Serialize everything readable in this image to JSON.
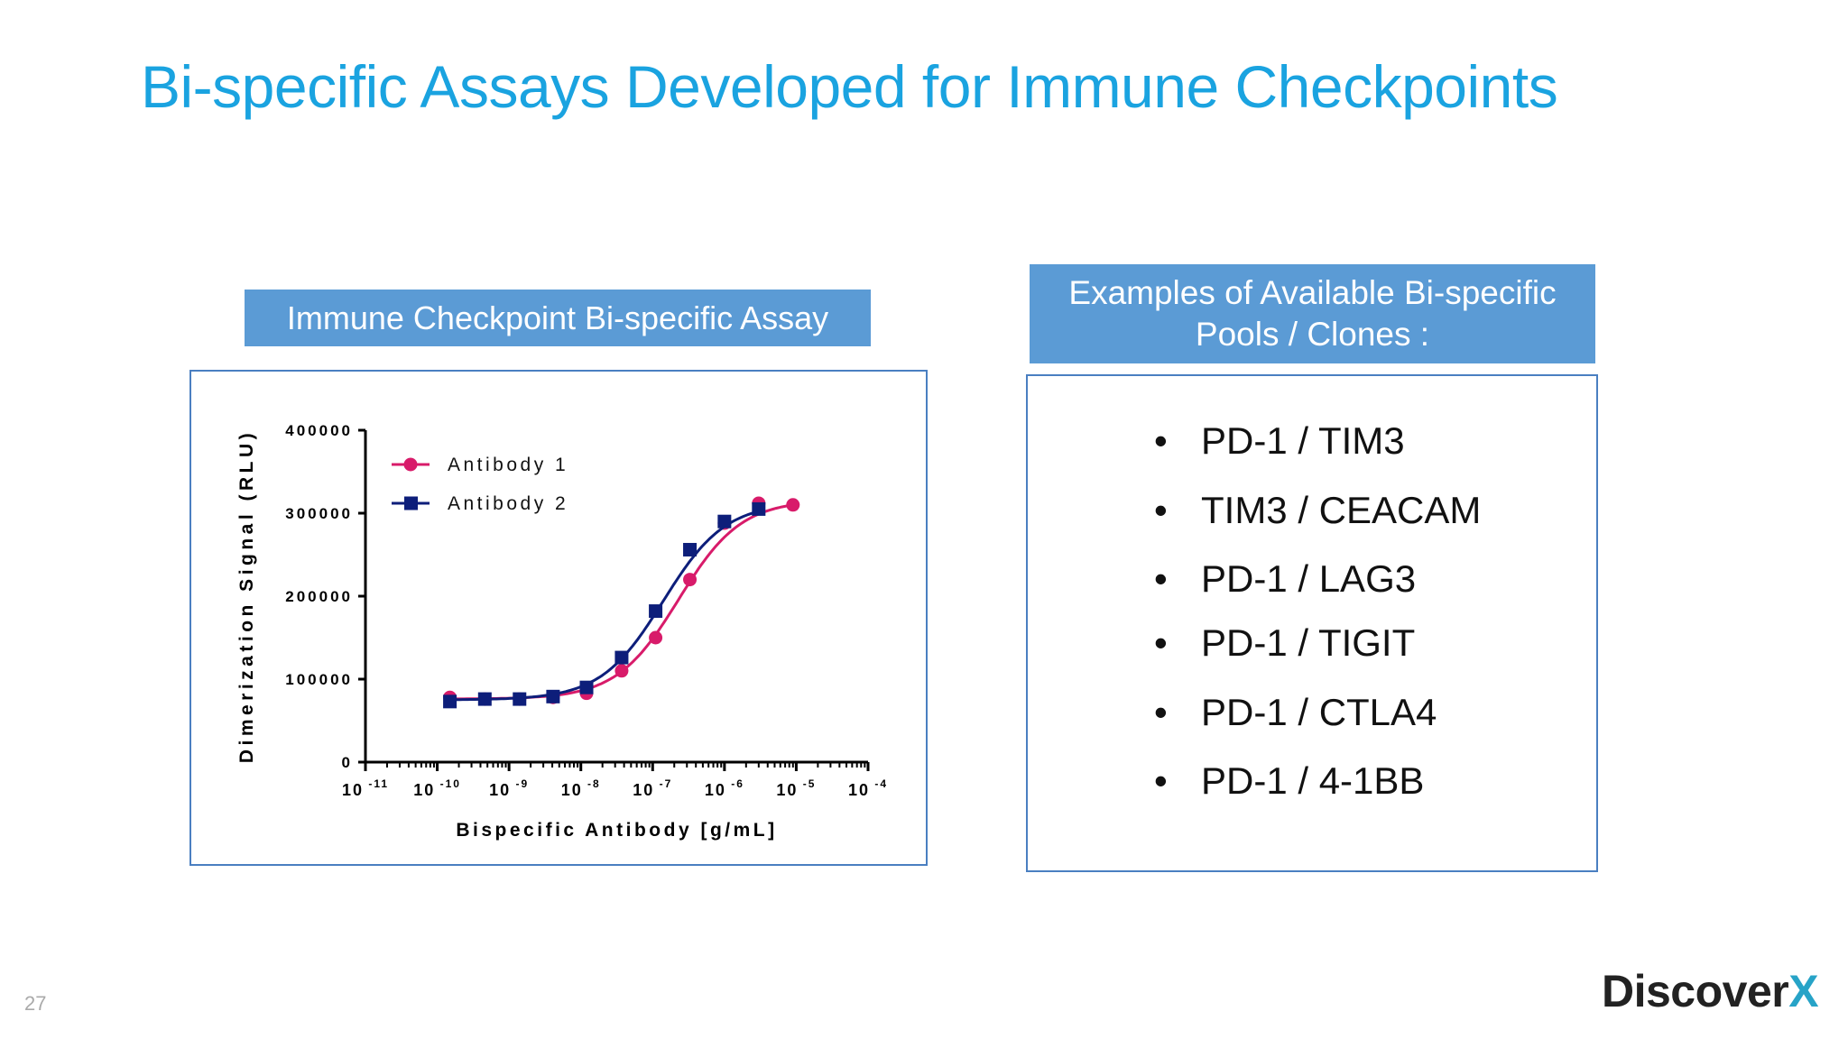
{
  "slide": {
    "title": "Bi-specific Assays Developed for Immune Checkpoints",
    "page_number": "27",
    "logo_text": "Discover",
    "logo_x": "X"
  },
  "left": {
    "header": "Immune Checkpoint Bi-specific Assay"
  },
  "right": {
    "header_line1": "Examples of Available Bi-specific",
    "header_line2": "Pools / Clones :",
    "bullet": "•",
    "clones": [
      "PD-1 / TIM3",
      "TIM3 / CEACAM",
      "PD-1 / LAG3",
      "PD-1 / TIGIT",
      "PD-1 / CTLA4",
      "PD-1 / 4-1BB"
    ]
  },
  "colors": {
    "title": "#1aa3e0",
    "header_bg": "#5b9bd5",
    "antibody1": "#d81b6a",
    "antibody2": "#0d1e7a"
  },
  "chart_data": {
    "type": "scatter",
    "xlabel": "Bispecific Antibody [g/mL]",
    "ylabel": "Dimerization Signal (RLU)",
    "x_scale": "log",
    "xlim": [
      1e-11,
      0.0001
    ],
    "ylim": [
      0,
      400000
    ],
    "x_tick_labels": [
      {
        "base": "10",
        "exp": "-11"
      },
      {
        "base": "10",
        "exp": "-10"
      },
      {
        "base": "10",
        "exp": "-9"
      },
      {
        "base": "10",
        "exp": "-8"
      },
      {
        "base": "10",
        "exp": "-7"
      },
      {
        "base": "10",
        "exp": "-6"
      },
      {
        "base": "10",
        "exp": "-5"
      },
      {
        "base": "10",
        "exp": "-4"
      }
    ],
    "y_ticks": [
      0,
      100000,
      200000,
      300000,
      400000
    ],
    "y_tick_labels": [
      "0",
      "100000",
      "200000",
      "300000",
      "400000"
    ],
    "legend_position": "top-left",
    "series": [
      {
        "name": "Antibody 1",
        "marker": "circle",
        "color": "#d81b6a",
        "x": [
          1.5e-10,
          4.6e-10,
          1.4e-09,
          4.1e-09,
          1.2e-08,
          3.7e-08,
          1.1e-07,
          3.3e-07,
          1e-06,
          3e-06,
          9e-06
        ],
        "y": [
          78000,
          76000,
          76000,
          78000,
          83000,
          110000,
          150000,
          220000,
          288000,
          312000,
          310000
        ],
        "curve": {
          "bottom": 76000,
          "top": 316000,
          "ec50": 2.3e-07,
          "hill": 1.0
        }
      },
      {
        "name": "Antibody 2",
        "marker": "square",
        "color": "#0d1e7a",
        "x": [
          1.5e-10,
          4.6e-10,
          1.4e-09,
          4.1e-09,
          1.2e-08,
          3.7e-08,
          1.1e-07,
          3.3e-07,
          1e-06,
          3e-06
        ],
        "y": [
          73000,
          76000,
          76000,
          79000,
          90000,
          126000,
          182000,
          256000,
          290000,
          305000
        ],
        "curve": {
          "bottom": 75000,
          "top": 313000,
          "ec50": 1.4e-07,
          "hill": 1.0
        }
      }
    ]
  }
}
